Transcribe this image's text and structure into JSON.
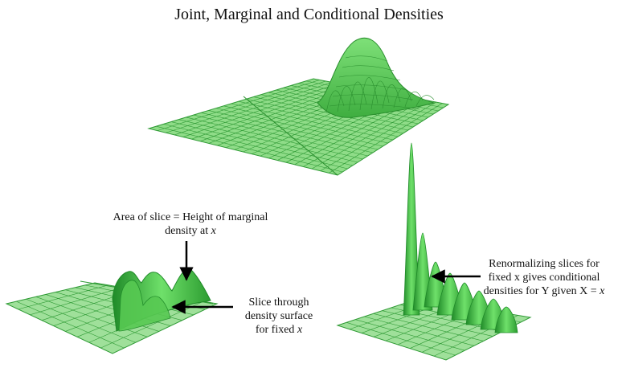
{
  "title": "Joint, Marginal and Conditional Densities",
  "annotations": {
    "area_line1": "Area of slice = Height of marginal",
    "area_line2a": "density at ",
    "area_line2b": "x",
    "slice_line1": "Slice through",
    "slice_line2": "density surface",
    "slice_line3a": "for fixed ",
    "slice_line3b": "x",
    "renorm_line1": "Renormalizing slices for",
    "renorm_line2": "fixed x gives conditional",
    "renorm_line3a": "densities for Y given X = ",
    "renorm_line3b": "x"
  },
  "colors": {
    "grid_line": "#2f9a35",
    "plane_fill": "#9fe09a",
    "surface_fill": "#5fcf5a",
    "surface_dark": "#2e9c32",
    "arrow": "#000000"
  }
}
